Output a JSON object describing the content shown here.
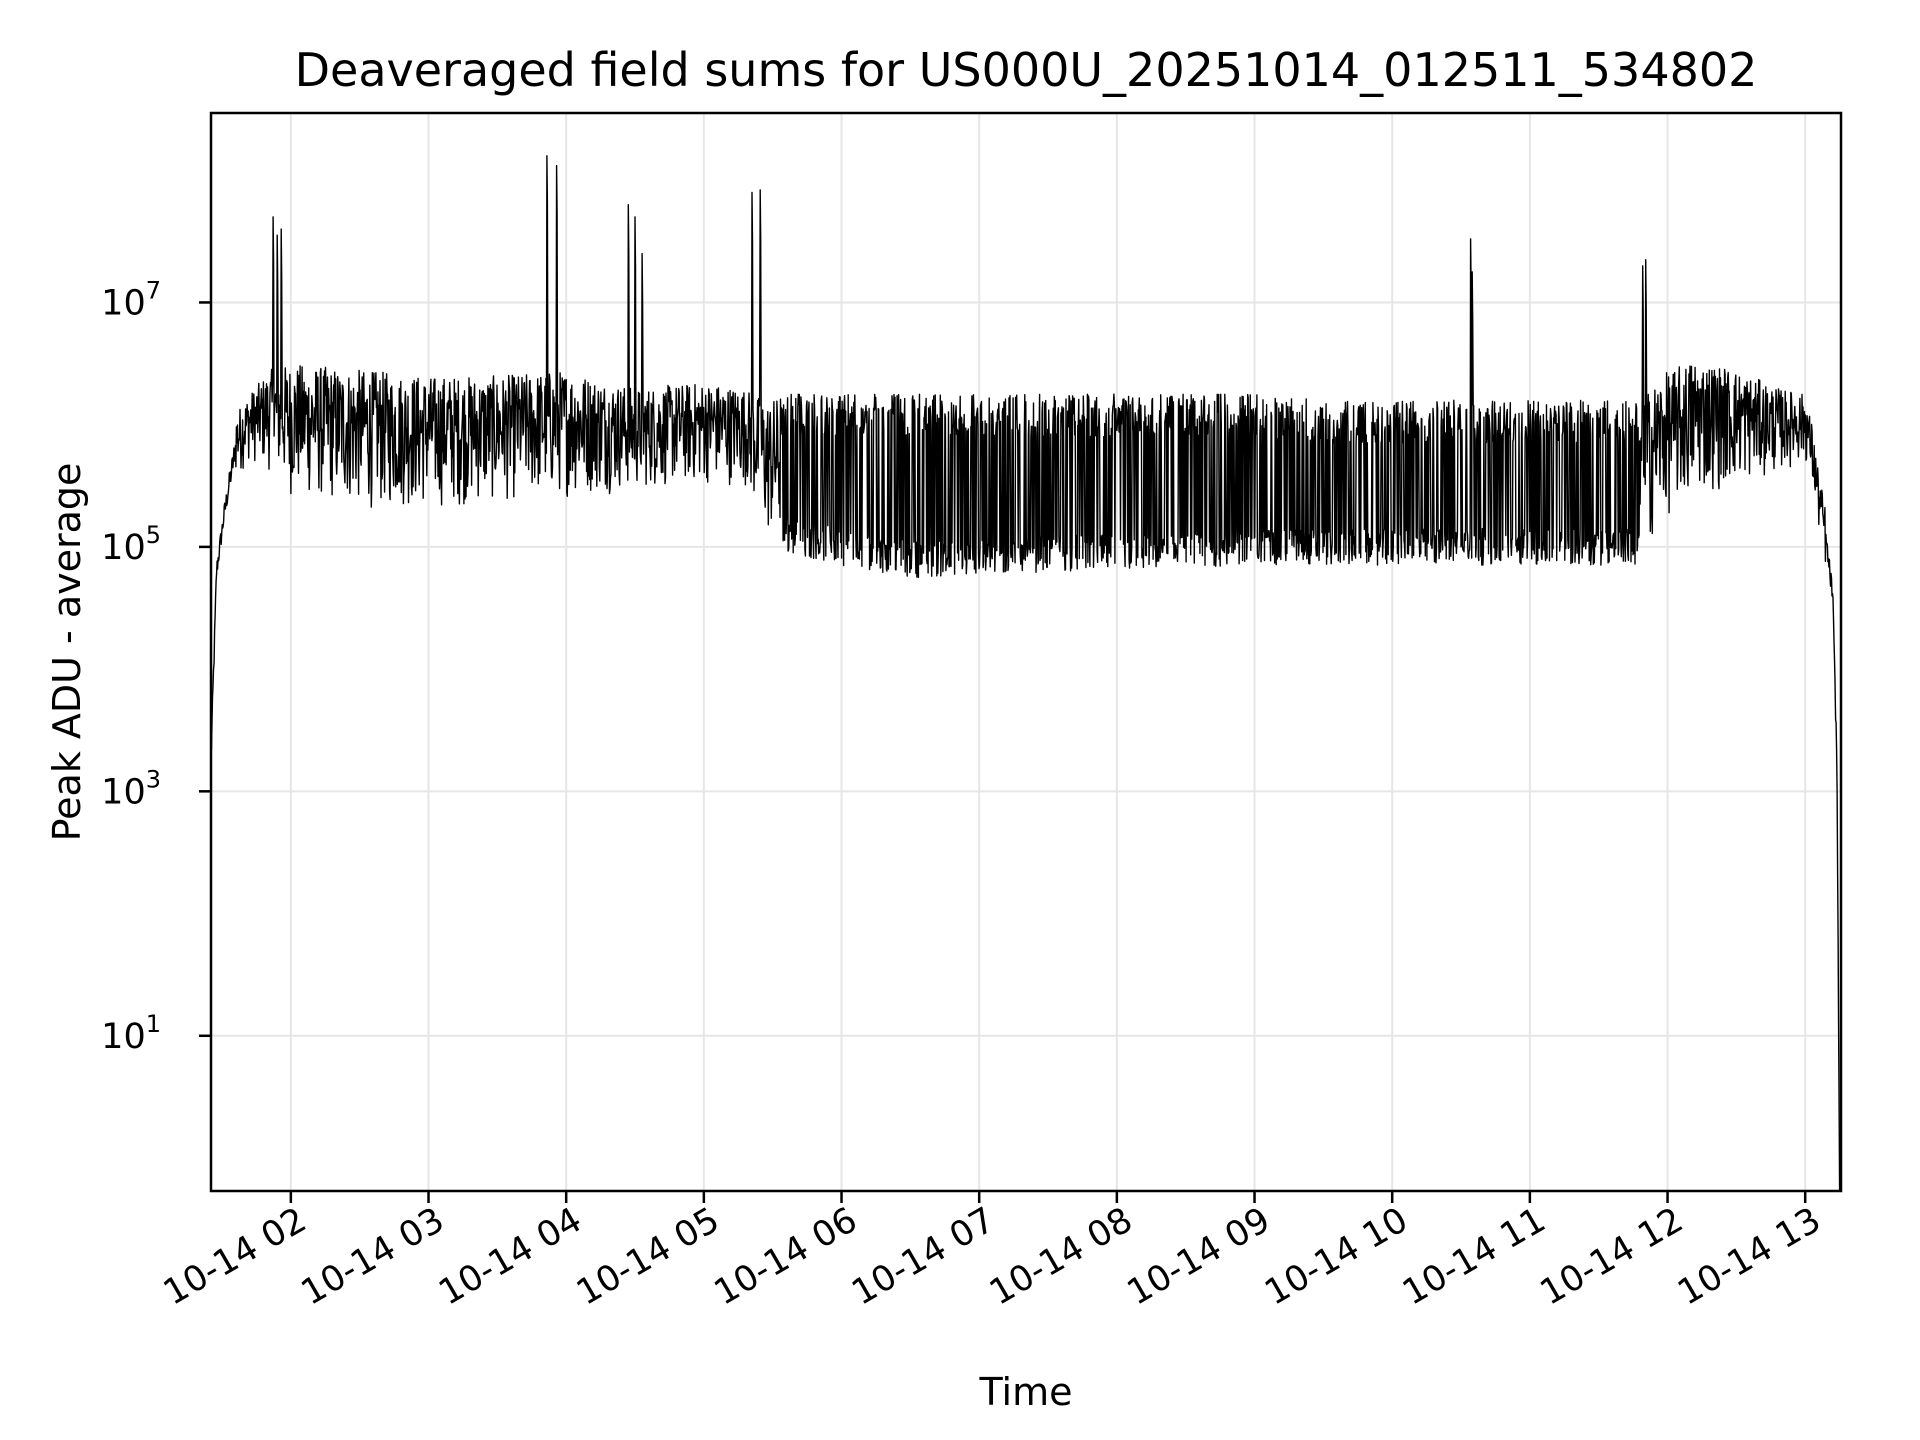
{
  "chart_data": {
    "type": "line",
    "title": "Deaveraged field sums for US000U_20251014_012511_534802",
    "xlabel": "Time",
    "ylabel": "Peak ADU - average",
    "yscale": "log",
    "xlim_hours": [
      1.42,
      13.26
    ],
    "ylim_log10": [
      -0.27,
      8.55
    ],
    "grid": true,
    "legend": "none",
    "x_ticks": [
      {
        "hour": 2,
        "label": "10-14 02"
      },
      {
        "hour": 3,
        "label": "10-14 03"
      },
      {
        "hour": 4,
        "label": "10-14 04"
      },
      {
        "hour": 5,
        "label": "10-14 05"
      },
      {
        "hour": 6,
        "label": "10-14 06"
      },
      {
        "hour": 7,
        "label": "10-14 07"
      },
      {
        "hour": 8,
        "label": "10-14 08"
      },
      {
        "hour": 9,
        "label": "10-14 09"
      },
      {
        "hour": 10,
        "label": "10-14 10"
      },
      {
        "hour": 11,
        "label": "10-14 11"
      },
      {
        "hour": 12,
        "label": "10-14 12"
      },
      {
        "hour": 13,
        "label": "10-14 13"
      }
    ],
    "y_ticks": [
      {
        "exp": 1,
        "base": "10",
        "sup": "1"
      },
      {
        "exp": 3,
        "base": "10",
        "sup": "3"
      },
      {
        "exp": 5,
        "base": "10",
        "sup": "5"
      },
      {
        "exp": 7,
        "base": "10",
        "sup": "7"
      }
    ],
    "series": [
      {
        "name": "Peak ADU - average",
        "envelope_hours": [
          1.42,
          1.46,
          1.52,
          1.6,
          1.7,
          1.85,
          2.0,
          2.5,
          3.0,
          3.5,
          4.0,
          4.5,
          5.0,
          5.3,
          5.45,
          5.6,
          6.0,
          6.5,
          7.0,
          7.5,
          8.0,
          8.5,
          9.0,
          9.5,
          10.0,
          10.5,
          11.0,
          11.5,
          11.8,
          11.95,
          12.2,
          12.5,
          12.8,
          13.0,
          13.05,
          13.1,
          13.15,
          13.2,
          13.23,
          13.25
        ],
        "envelope_low_log10": [
          3.0,
          4.6,
          5.1,
          5.55,
          5.7,
          5.6,
          5.4,
          5.3,
          5.3,
          5.35,
          5.4,
          5.45,
          5.5,
          5.5,
          5.05,
          4.95,
          4.85,
          4.75,
          4.75,
          4.8,
          4.8,
          4.8,
          4.85,
          4.85,
          4.85,
          4.85,
          4.85,
          4.85,
          4.85,
          5.2,
          5.4,
          5.5,
          5.6,
          5.7,
          5.5,
          5.1,
          4.8,
          4.4,
          3.0,
          -0.27
        ],
        "envelope_high_log10": [
          3.5,
          5.0,
          5.5,
          6.1,
          6.25,
          6.45,
          6.5,
          6.45,
          6.4,
          6.4,
          6.45,
          6.3,
          6.35,
          6.3,
          6.2,
          6.25,
          6.25,
          6.25,
          6.25,
          6.25,
          6.25,
          6.25,
          6.25,
          6.2,
          6.2,
          6.2,
          6.2,
          6.2,
          6.2,
          6.4,
          6.55,
          6.45,
          6.3,
          6.25,
          6.0,
          5.6,
          5.3,
          4.8,
          3.5,
          0.0
        ],
        "spikes": [
          {
            "hour": 1.87,
            "log10": 7.7
          },
          {
            "hour": 1.9,
            "log10": 7.55
          },
          {
            "hour": 1.93,
            "log10": 7.6
          },
          {
            "hour": 3.86,
            "log10": 8.2
          },
          {
            "hour": 3.93,
            "log10": 8.12
          },
          {
            "hour": 4.45,
            "log10": 7.8
          },
          {
            "hour": 4.5,
            "log10": 7.7
          },
          {
            "hour": 4.55,
            "log10": 7.4
          },
          {
            "hour": 5.35,
            "log10": 7.9
          },
          {
            "hour": 5.41,
            "log10": 7.92
          },
          {
            "hour": 10.57,
            "log10": 7.52
          },
          {
            "hour": 10.58,
            "log10": 7.25
          },
          {
            "hour": 11.82,
            "log10": 7.3
          },
          {
            "hour": 11.84,
            "log10": 7.35
          }
        ]
      }
    ]
  }
}
